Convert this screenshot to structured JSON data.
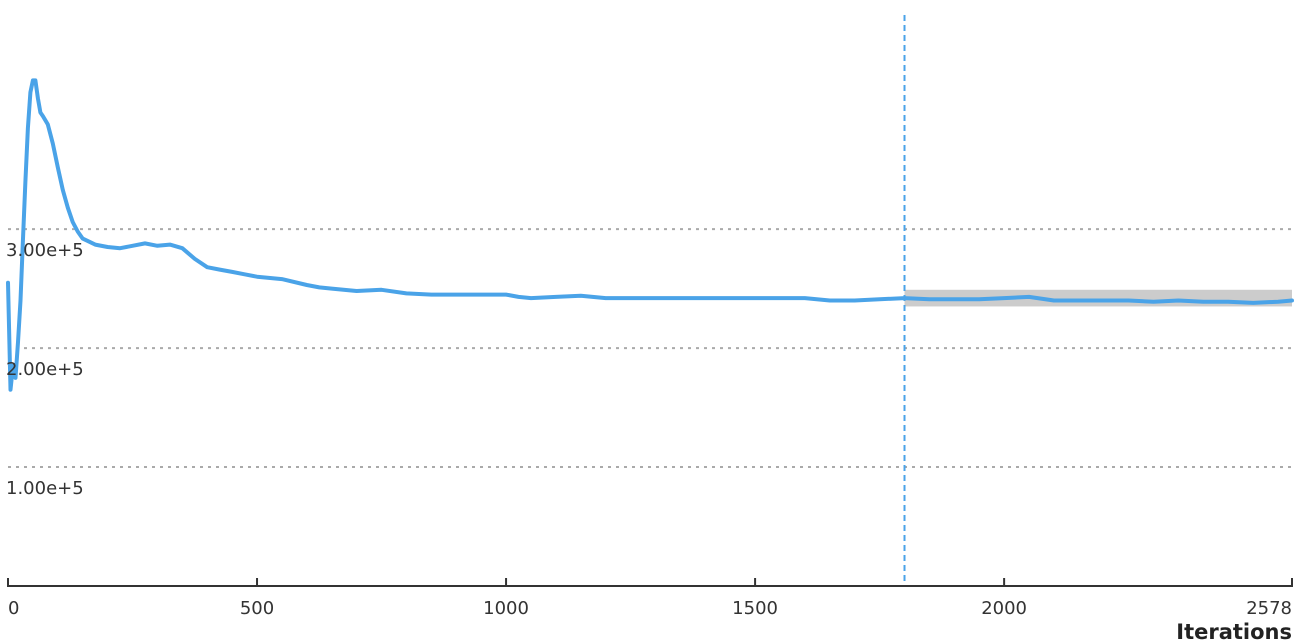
{
  "chart_data": {
    "type": "line",
    "title": "",
    "xlabel": "Iterations",
    "ylabel": "",
    "xlim": [
      0,
      2578
    ],
    "ylim": [
      0,
      480000
    ],
    "grid": "horizontal dotted",
    "x_ticks": [
      {
        "value": 0,
        "label": "0"
      },
      {
        "value": 500,
        "label": "500"
      },
      {
        "value": 1000,
        "label": "1000"
      },
      {
        "value": 1500,
        "label": "1500"
      },
      {
        "value": 2000,
        "label": "2000"
      },
      {
        "value": 2578,
        "label": "2578"
      }
    ],
    "y_ticks": [
      {
        "value": 100000,
        "label": "1.00e+5"
      },
      {
        "value": 200000,
        "label": "2.00e+5"
      },
      {
        "value": 300000,
        "label": "3.00e+5"
      }
    ],
    "vertical_marker": {
      "x": 1800
    },
    "band": {
      "x_start": 1800,
      "x_end": 2578,
      "y_low": 235000,
      "y_high": 249000
    },
    "series": [
      {
        "color": "#4aa3e8",
        "x": [
          0,
          5,
          10,
          15,
          20,
          25,
          30,
          35,
          40,
          45,
          50,
          55,
          60,
          65,
          70,
          80,
          90,
          100,
          110,
          120,
          130,
          140,
          150,
          175,
          200,
          225,
          250,
          275,
          300,
          325,
          350,
          375,
          400,
          425,
          450,
          475,
          500,
          550,
          600,
          625,
          650,
          700,
          750,
          800,
          850,
          900,
          950,
          1000,
          1025,
          1050,
          1100,
          1150,
          1200,
          1250,
          1300,
          1350,
          1400,
          1450,
          1500,
          1550,
          1600,
          1650,
          1700,
          1750,
          1800,
          1850,
          1900,
          1950,
          2000,
          2050,
          2100,
          2150,
          2200,
          2250,
          2300,
          2350,
          2400,
          2450,
          2500,
          2550,
          2578
        ],
        "y": [
          255000,
          165000,
          185000,
          175000,
          205000,
          240000,
          290000,
          340000,
          385000,
          415000,
          425000,
          425000,
          410000,
          398000,
          395000,
          388000,
          372000,
          352000,
          333000,
          318000,
          306000,
          298000,
          292000,
          287000,
          285000,
          284000,
          286000,
          288000,
          286000,
          287000,
          284000,
          275000,
          268000,
          266000,
          264000,
          262000,
          260000,
          258000,
          253000,
          251000,
          250000,
          248000,
          249000,
          246000,
          245000,
          245000,
          245000,
          245000,
          243000,
          242000,
          243000,
          244000,
          242000,
          242000,
          242000,
          242000,
          242000,
          242000,
          242000,
          242000,
          242000,
          240000,
          240000,
          241000,
          242000,
          241000,
          241000,
          241000,
          242000,
          243000,
          240000,
          240000,
          240000,
          240000,
          239000,
          240000,
          239000,
          239000,
          238000,
          239000,
          240000
        ]
      }
    ]
  }
}
